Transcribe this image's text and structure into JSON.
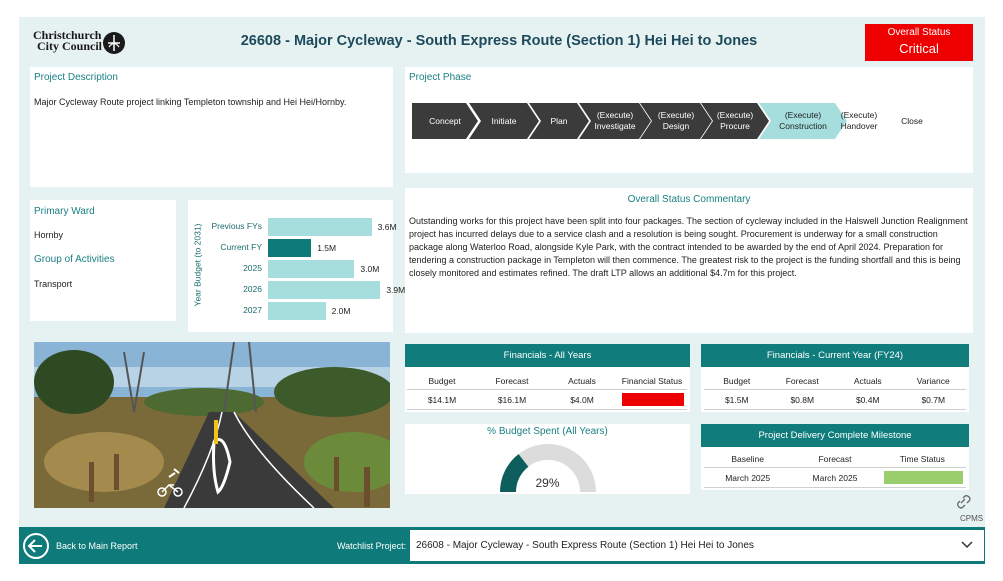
{
  "header": {
    "logo_line1": "Christchurch",
    "logo_line2": "City Council",
    "title": "26608 - Major Cycleway - South Express Route (Section 1) Hei Hei to Jones",
    "overall_status_label": "Overall Status",
    "overall_status_value": "Critical",
    "status_color": "#ee0000"
  },
  "description": {
    "title": "Project Description",
    "text": "Major Cycleway Route project linking Templeton township and Hei Hei/Hornby."
  },
  "phase": {
    "title": "Project Phase",
    "steps": [
      {
        "l1": "Concept",
        "l2": ""
      },
      {
        "l1": "Initiate",
        "l2": ""
      },
      {
        "l1": "Plan",
        "l2": ""
      },
      {
        "l1": "(Execute)",
        "l2": "Investigate"
      },
      {
        "l1": "(Execute)",
        "l2": "Design"
      },
      {
        "l1": "(Execute)",
        "l2": "Procure"
      },
      {
        "l1": "(Execute)",
        "l2": "Construction"
      },
      {
        "l1": "(Execute)",
        "l2": "Handover"
      },
      {
        "l1": "Close",
        "l2": ""
      }
    ],
    "current_step": "(Execute) Construction"
  },
  "ward": {
    "primary_ward_label": "Primary Ward",
    "primary_ward_value": "Hornby",
    "group_label": "Group of Activities",
    "group_value": "Transport"
  },
  "chart_data": {
    "type": "bar",
    "orientation": "horizontal",
    "title": "",
    "ylabel": "Year Budget (to 2031)",
    "categories": [
      "Previous FYs",
      "Current FY",
      "2025",
      "2026",
      "2027"
    ],
    "values": [
      3.6,
      1.5,
      3.0,
      3.9,
      2.0
    ],
    "value_labels": [
      "3.6M",
      "1.5M",
      "3.0M",
      "3.9M",
      "2.0M"
    ],
    "highlight_category": "Current FY",
    "colors": {
      "default": "#a6dede",
      "highlight": "#0f7a7a"
    },
    "xlim": [
      0,
      4.2
    ]
  },
  "commentary": {
    "title": "Overall Status Commentary",
    "text": "Outstanding works for this project have been split into four packages. The section of cycleway included in the Halswell Junction Realignment project has incurred delays due to a service clash and a resolution is being sought. Procurement is underway for a small construction package along Waterloo Road, alongside Kyle Park, with the contract intended to be awarded by the end of April 2024. Preparation for tendering a construction package in Templeton will then commence. The greatest risk to the project is the funding shortfall and this is being closely monitored and estimates refined. The draft LTP allows an additional $4.7m for this project."
  },
  "financials_all": {
    "title": "Financials - All Years",
    "headers": [
      "Budget",
      "Forecast",
      "Actuals",
      "Financial Status"
    ],
    "values": [
      "$14.1M",
      "$16.1M",
      "$4.0M",
      ""
    ],
    "status_color": "#ee0000"
  },
  "financials_current": {
    "title": "Financials - Current Year (FY24)",
    "headers": [
      "Budget",
      "Forecast",
      "Actuals",
      "Variance"
    ],
    "values": [
      "$1.5M",
      "$0.8M",
      "$0.4M",
      "$0.7M"
    ]
  },
  "budget_spent": {
    "title": "% Budget Spent (All Years)",
    "percent_label": "29%",
    "percent": 29
  },
  "milestone": {
    "title": "Project Delivery Complete Milestone",
    "headers": [
      "Baseline",
      "Forecast",
      "Time Status"
    ],
    "values": [
      "March 2025",
      "March 2025",
      ""
    ],
    "status_color": "#9acd6b"
  },
  "cpms_label": "CPMS",
  "footer": {
    "back_label": "Back to Main Report",
    "watchlist_label": "Watchlist Project:",
    "selected_project": "26608 - Major Cycleway - South Express Route (Section 1) Hei Hei to Jones"
  },
  "photo": {
    "description_icon": "cycleway-photo"
  }
}
